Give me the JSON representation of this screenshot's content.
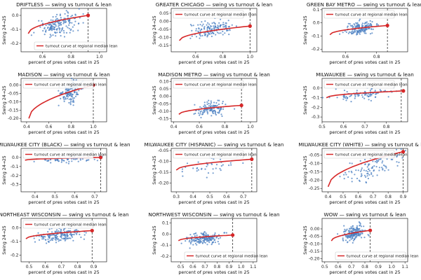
{
  "figure": {
    "x_label": "percent of pres votes cast in 25",
    "y_label": "Swing 24→25",
    "legend_label": "turnout curve at regional median lean"
  },
  "colors": {
    "points": "#4a7fc1",
    "curve": "#d62728",
    "vline": "#333333"
  },
  "chart_data": [
    {
      "type": "scatter",
      "title": "DRIFTLESS — swing vs turnout & lean",
      "xlim": [
        0.45,
        1.05
      ],
      "ylim": [
        -0.26,
        0.05
      ],
      "xticks": [
        "0.6",
        "0.8",
        "1.0"
      ],
      "xtick_vals": [
        0.6,
        0.8,
        1.0
      ],
      "yticks": [
        "0.0",
        "-0.1",
        "-0.2"
      ],
      "ytick_vals": [
        0.0,
        -0.1,
        -0.2
      ],
      "vline": 0.92,
      "legend": "bottom-right",
      "curve": {
        "x": [
          0.5,
          0.92
        ],
        "y0": -0.13,
        "y1": 0.0
      },
      "cloud": {
        "cx": 0.72,
        "cy": -0.06,
        "sx": 0.07,
        "sy": 0.04,
        "n": 170
      }
    },
    {
      "type": "scatter",
      "title": "GREATER CHICAGO — swing vs turnout & lean",
      "xlim": [
        0.42,
        1.05
      ],
      "ylim": [
        -0.19,
        0.08
      ],
      "xticks": [
        "0.6",
        "0.8",
        "1.0"
      ],
      "xtick_vals": [
        0.6,
        0.8,
        1.0
      ],
      "yticks": [
        "0.05",
        "0.00",
        "-0.05",
        "-0.10",
        "-0.15"
      ],
      "ytick_vals": [
        0.05,
        0.0,
        -0.05,
        -0.1,
        -0.15
      ],
      "vline": 1.0,
      "legend": "top-left",
      "curve": {
        "x": [
          0.48,
          1.0
        ],
        "y0": -0.12,
        "y1": -0.03
      },
      "cloud": {
        "cx": 0.72,
        "cy": -0.05,
        "sx": 0.07,
        "sy": 0.025,
        "n": 140
      }
    },
    {
      "type": "scatter",
      "title": "GREEN BAY METRO — swing vs turnout & lean",
      "xlim": [
        0.45,
        1.0
      ],
      "ylim": [
        -0.22,
        0.11
      ],
      "xticks": [
        "0.6",
        "0.8"
      ],
      "xtick_vals": [
        0.6,
        0.8
      ],
      "yticks": [
        "0.1",
        "0.0",
        "-0.1",
        "-0.2"
      ],
      "ytick_vals": [
        0.1,
        0.0,
        -0.1,
        -0.2
      ],
      "vline": 0.87,
      "legend": "top-left",
      "curve": {
        "x": [
          0.5,
          0.87
        ],
        "y0": -0.09,
        "y1": -0.02
      },
      "cloud": {
        "cx": 0.69,
        "cy": -0.04,
        "sx": 0.05,
        "sy": 0.025,
        "n": 150
      }
    },
    {
      "type": "scatter",
      "title": "MADISON — swing vs turnout & lean",
      "xlim": [
        0.35,
        1.12
      ],
      "ylim": [
        -0.22,
        0.04
      ],
      "xticks": [
        "0.4",
        "0.6",
        "0.8",
        "1.0"
      ],
      "xtick_vals": [
        0.4,
        0.6,
        0.8,
        1.0
      ],
      "yticks": [
        "0.00",
        "-0.05",
        "-0.10",
        "-0.15",
        "-0.20"
      ],
      "ytick_vals": [
        0.0,
        -0.05,
        -0.1,
        -0.15,
        -0.2
      ],
      "vline": 1.0,
      "legend": "top-left",
      "curve": {
        "x": [
          0.42,
          1.0
        ],
        "y0": -0.2,
        "y1": 0.0
      },
      "cloud": {
        "cx": 0.8,
        "cy": -0.04,
        "sx": 0.05,
        "sy": 0.03,
        "n": 160
      }
    },
    {
      "type": "scatter",
      "title": "MADISON METRO — swing vs turnout & lean",
      "xlim": [
        0.38,
        1.05
      ],
      "ylim": [
        -0.17,
        0.12
      ],
      "xticks": [
        "0.4",
        "0.6",
        "0.8",
        "1.0"
      ],
      "xtick_vals": [
        0.4,
        0.6,
        0.8,
        1.0
      ],
      "yticks": [
        "0.10",
        "0.05",
        "0.00",
        "-0.05",
        "-0.10",
        "-0.15"
      ],
      "ytick_vals": [
        0.1,
        0.05,
        0.0,
        -0.05,
        -0.1,
        -0.15
      ],
      "vline": 0.93,
      "legend": "top-left",
      "curve": {
        "x": [
          0.44,
          0.93
        ],
        "y0": -0.12,
        "y1": -0.06
      },
      "cloud": {
        "cx": 0.7,
        "cy": -0.08,
        "sx": 0.06,
        "sy": 0.025,
        "n": 120
      }
    },
    {
      "type": "scatter",
      "title": "MILWAUKEE — swing vs turnout & lean",
      "xlim": [
        0.5,
        0.9
      ],
      "ylim": [
        -0.35,
        0.1
      ],
      "xticks": [
        "0.5",
        "0.6",
        "0.7",
        "0.8"
      ],
      "xtick_vals": [
        0.5,
        0.6,
        0.7,
        0.8
      ],
      "yticks": [
        "0.0",
        "-0.1",
        "-0.2",
        "-0.3"
      ],
      "ytick_vals": [
        0.0,
        -0.1,
        -0.2,
        -0.3
      ],
      "vline": 0.87,
      "legend": "top-left",
      "curve": {
        "x": [
          0.52,
          0.88
        ],
        "y0": -0.1,
        "y1": -0.03
      },
      "cloud": {
        "cx": 0.7,
        "cy": -0.06,
        "sx": 0.07,
        "sy": 0.03,
        "n": 90
      }
    },
    {
      "type": "scatter",
      "title": "MILWAUKEE CITY (BLACK) — swing vs turnout & lean",
      "xlim": [
        0.33,
        0.76
      ],
      "ylim": [
        -0.38,
        0.1
      ],
      "xticks": [
        "0.4",
        "0.5",
        "0.6",
        "0.7"
      ],
      "xtick_vals": [
        0.4,
        0.5,
        0.6,
        0.7
      ],
      "yticks": [
        "0.0",
        "-0.1",
        "-0.2",
        "-0.3"
      ],
      "ytick_vals": [
        0.0,
        -0.1,
        -0.2,
        -0.3
      ],
      "vline": 0.73,
      "legend": "top-left",
      "curve": {
        "x": [
          0.35,
          0.73
        ],
        "y0": -0.03,
        "y1": 0.0
      },
      "cloud": {
        "cx": 0.55,
        "cy": -0.02,
        "sx": 0.08,
        "sy": 0.02,
        "n": 80
      }
    },
    {
      "type": "scatter",
      "title": "MILWAUKEE CITY (HISPANIC) — swing vs turnout & lean",
      "xlim": [
        0.27,
        0.78
      ],
      "ylim": [
        -0.24,
        -0.04
      ],
      "xticks": [
        "0.3",
        "0.4",
        "0.5",
        "0.6",
        "0.7"
      ],
      "xtick_vals": [
        0.3,
        0.4,
        0.5,
        0.6,
        0.7
      ],
      "yticks": [
        "-0.05",
        "-0.10",
        "-0.15",
        "-0.20"
      ],
      "ytick_vals": [
        -0.05,
        -0.1,
        -0.15,
        -0.2
      ],
      "vline": 0.75,
      "legend": "top-left",
      "curve": {
        "x": [
          0.3,
          0.75
        ],
        "y0": -0.14,
        "y1": -0.09
      },
      "cloud": {
        "cx": 0.5,
        "cy": -0.12,
        "sx": 0.1,
        "sy": 0.03,
        "n": 45
      }
    },
    {
      "type": "scatter",
      "title": "MILWAUKEE CITY (WHITE) — swing vs turnout & lean",
      "xlim": [
        0.36,
        0.93
      ],
      "ylim": [
        -0.27,
        -0.01
      ],
      "xticks": [
        "0.4",
        "0.5",
        "0.6",
        "0.7",
        "0.8",
        "0.9"
      ],
      "xtick_vals": [
        0.4,
        0.5,
        0.6,
        0.7,
        0.8,
        0.9
      ],
      "yticks": [
        "-0.05",
        "-0.10",
        "-0.15",
        "-0.20",
        "-0.25"
      ],
      "ytick_vals": [
        -0.05,
        -0.1,
        -0.15,
        -0.2,
        -0.25
      ],
      "vline": 0.9,
      "legend": "top-left",
      "curve": {
        "x": [
          0.4,
          0.9
        ],
        "y0": -0.24,
        "y1": -0.03
      },
      "cloud": {
        "cx": 0.72,
        "cy": -0.11,
        "sx": 0.1,
        "sy": 0.04,
        "n": 110
      }
    },
    {
      "type": "scatter",
      "title": "NORTHEAST WISCONSIN — swing vs turnout & lean",
      "xlim": [
        0.45,
        0.98
      ],
      "ylim": [
        -0.25,
        0.07
      ],
      "xticks": [
        "0.5",
        "0.6",
        "0.7",
        "0.8",
        "0.9"
      ],
      "xtick_vals": [
        0.5,
        0.6,
        0.7,
        0.8,
        0.9
      ],
      "yticks": [
        "0.0",
        "-0.1",
        "-0.2"
      ],
      "ytick_vals": [
        0.0,
        -0.1,
        -0.2
      ],
      "vline": 0.89,
      "legend": "top-left",
      "curve": {
        "x": [
          0.48,
          0.89
        ],
        "y0": -0.08,
        "y1": -0.02
      },
      "cloud": {
        "cx": 0.7,
        "cy": -0.05,
        "sx": 0.07,
        "sy": 0.025,
        "n": 170
      }
    },
    {
      "type": "scatter",
      "title": "NORTHWEST WISCONSIN — swing vs turnout & lean",
      "xlim": [
        0.42,
        1.13
      ],
      "ylim": [
        -0.25,
        0.14
      ],
      "xticks": [
        "0.5",
        "0.6",
        "0.7",
        "0.8",
        "0.9",
        "1.0",
        "1.1"
      ],
      "xtick_vals": [
        0.5,
        0.6,
        0.7,
        0.8,
        0.9,
        1.0,
        1.1
      ],
      "yticks": [
        "0.1",
        "0.0",
        "-0.1",
        "-0.2"
      ],
      "ytick_vals": [
        0.1,
        0.0,
        -0.1,
        -0.2
      ],
      "vline": 0.93,
      "legend": "bottom-right",
      "curve": {
        "x": [
          0.48,
          0.93
        ],
        "y0": -0.06,
        "y1": -0.01
      },
      "cloud": {
        "cx": 0.7,
        "cy": -0.04,
        "sx": 0.07,
        "sy": 0.025,
        "n": 170
      }
    },
    {
      "type": "scatter",
      "title": "WOW — swing vs turnout & lean",
      "xlim": [
        0.48,
        1.12
      ],
      "ylim": [
        -0.22,
        0.07
      ],
      "xticks": [
        "0.5",
        "0.6",
        "0.7",
        "0.8",
        "0.9",
        "1.0",
        "1.1"
      ],
      "xtick_vals": [
        0.5,
        0.6,
        0.7,
        0.8,
        0.9,
        1.0,
        1.1
      ],
      "yticks": [
        "0.00",
        "-0.05",
        "-0.10",
        "-0.15",
        "-0.20"
      ],
      "ytick_vals": [
        0.0,
        -0.05,
        -0.1,
        -0.15,
        -0.2
      ],
      "vline": 0.84,
      "legend": "bottom-right",
      "curve": {
        "x": [
          0.55,
          0.84
        ],
        "y0": -0.08,
        "y1": -0.01
      },
      "cloud": {
        "cx": 0.72,
        "cy": -0.03,
        "sx": 0.04,
        "sy": 0.025,
        "n": 180
      }
    }
  ]
}
